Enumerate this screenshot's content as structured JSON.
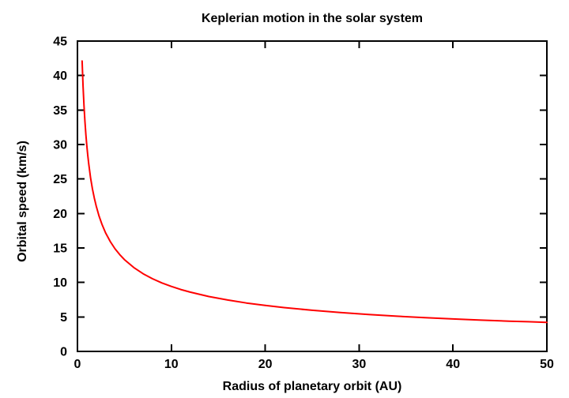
{
  "chart_data": {
    "type": "line",
    "title": "Keplerian motion in the solar system",
    "xlabel": "Radius of planetary orbit (AU)",
    "ylabel": "Orbital speed (km/s)",
    "xlim": [
      0,
      50
    ],
    "ylim": [
      0,
      45
    ],
    "xticks": [
      0,
      10,
      20,
      30,
      40,
      50
    ],
    "yticks": [
      0,
      5,
      10,
      15,
      20,
      25,
      30,
      35,
      40,
      45
    ],
    "grid": false,
    "legend": "none",
    "background_color": "#ffffff",
    "border_color": "#000000",
    "series": [
      {
        "name": "orbital-speed-curve",
        "color": "#ff0000",
        "formula": "v = 29.78 / sqrt(r), r from 0.5 to 50 AU",
        "points": [
          [
            0.5,
            42.12
          ],
          [
            0.6,
            38.45
          ],
          [
            0.7,
            35.6
          ],
          [
            0.8,
            33.3
          ],
          [
            0.9,
            31.39
          ],
          [
            1.0,
            29.78
          ],
          [
            1.1,
            28.4
          ],
          [
            1.2,
            27.18
          ],
          [
            1.4,
            25.17
          ],
          [
            1.6,
            23.54
          ],
          [
            1.8,
            22.2
          ],
          [
            2.0,
            21.06
          ],
          [
            2.3,
            19.64
          ],
          [
            2.6,
            18.47
          ],
          [
            3.0,
            17.19
          ],
          [
            3.5,
            15.92
          ],
          [
            4.0,
            14.89
          ],
          [
            4.5,
            14.04
          ],
          [
            5.0,
            13.32
          ],
          [
            6.0,
            12.16
          ],
          [
            7.0,
            11.26
          ],
          [
            8.0,
            10.53
          ],
          [
            9.0,
            9.93
          ],
          [
            10,
            9.42
          ],
          [
            11,
            8.98
          ],
          [
            12,
            8.6
          ],
          [
            14,
            7.96
          ],
          [
            16,
            7.45
          ],
          [
            18,
            7.02
          ],
          [
            20,
            6.66
          ],
          [
            22,
            6.35
          ],
          [
            25,
            5.96
          ],
          [
            28,
            5.63
          ],
          [
            31,
            5.35
          ],
          [
            34,
            5.11
          ],
          [
            37,
            4.9
          ],
          [
            40,
            4.71
          ],
          [
            43,
            4.54
          ],
          [
            46,
            4.39
          ],
          [
            48,
            4.3
          ],
          [
            50,
            4.21
          ]
        ]
      }
    ]
  }
}
